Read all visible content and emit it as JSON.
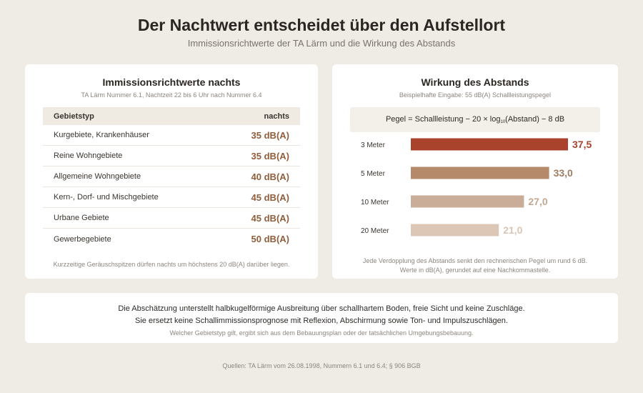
{
  "header": {
    "title": "Der Nachtwert entscheidet über den Aufstellort",
    "subtitle": "Immissionsrichtwerte der TA Lärm und die Wirkung des Abstands"
  },
  "left_card": {
    "title": "Immissionsrichtwerte nachts",
    "subtitle": "TA Lärm Nummer 6.1, Nachtzeit 22 bis 6 Uhr nach Nummer 6.4",
    "col_area": "Gebietstyp",
    "col_night": "nachts",
    "rows": [
      {
        "area": "Kurgebiete, Krankenhäuser",
        "value": "35 dB(A)"
      },
      {
        "area": "Reine Wohngebiete",
        "value": "35 dB(A)"
      },
      {
        "area": "Allgemeine Wohngebiete",
        "value": "40 dB(A)"
      },
      {
        "area": "Kern-, Dorf- und Mischgebiete",
        "value": "45 dB(A)"
      },
      {
        "area": "Urbane Gebiete",
        "value": "45 dB(A)"
      },
      {
        "area": "Gewerbegebiete",
        "value": "50 dB(A)"
      }
    ],
    "note": "Kurzzeitige Geräuschspitzen dürfen nachts um höchstens 20 dB(A) darüber liegen."
  },
  "right_card": {
    "title": "Wirkung des Abstands",
    "subtitle": "Beispielhafte Eingabe: 55 dB(A) Schallleistungspegel",
    "formula_pre": "Pegel = Schallleistung − 20 × log",
    "formula_sub": "10",
    "formula_post": "(Abstand) − 8 dB",
    "note_line1": "Jede Verdopplung des Abstands senkt den rechnerischen Pegel um rund 6 dB.",
    "note_line2": "Werte in dB(A), gerundet auf eine Nachkommastelle."
  },
  "chart_data": {
    "type": "bar",
    "orientation": "horizontal",
    "categories": [
      "3 Meter",
      "5 Meter",
      "10 Meter",
      "20 Meter"
    ],
    "values": [
      37.5,
      33.0,
      27.0,
      21.0
    ],
    "value_labels": [
      "37,5",
      "33,0",
      "27,0",
      "21,0"
    ],
    "xlim": [
      0,
      37.5
    ],
    "bar_colors": [
      "#a9432c",
      "#b48a6a",
      "#c9ad98",
      "#dcc7b7"
    ],
    "label_colors": [
      "#a9432c",
      "#a07c60",
      "#c3a791",
      "#d8c5b6"
    ]
  },
  "bottom_card": {
    "line1": "Die Abschätzung unterstellt halbkugelförmige Ausbreitung über schallhartem Boden, freie Sicht und keine Zuschläge.",
    "line2": "Sie ersetzt keine Schallimmissionsprognose mit Reflexion, Abschirmung sowie Ton- und Impulszuschlägen.",
    "line3": "Welcher Gebietstyp gilt, ergibt sich aus dem Bebauungsplan oder der tatsächlichen Umgebungsbebauung."
  },
  "footer": {
    "source": "Quellen: TA Lärm vom 26.08.1998, Nummern 6.1 und 6.4; § 906 BGB"
  }
}
